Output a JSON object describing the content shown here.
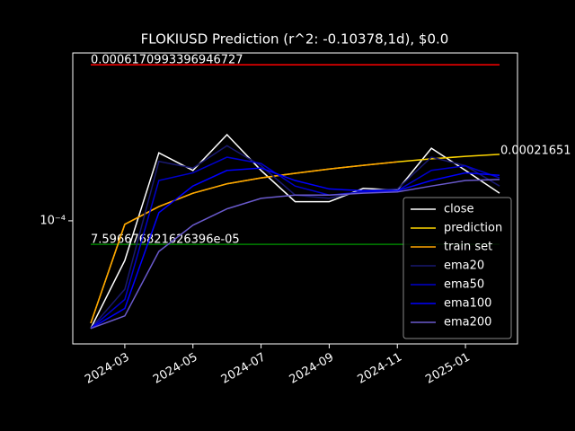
{
  "chart_data": {
    "type": "line",
    "title": "FLOKIUSD Prediction (r^2: -0.10378,1d), $0.0",
    "x": [
      "2024-02",
      "2024-03",
      "2024-04",
      "2024-05",
      "2024-06",
      "2024-07",
      "2024-08",
      "2024-09",
      "2024-10",
      "2024-11",
      "2024-12",
      "2025-01",
      "2025-02"
    ],
    "xlim": [
      "2024-02",
      "2025-02"
    ],
    "xticks": [
      "2024-03",
      "2024-05",
      "2024-07",
      "2024-09",
      "2024-11",
      "2025-01"
    ],
    "log_y": true,
    "ylim": [
      2.38e-05,
      0.000708
    ],
    "yticks": [
      {
        "value": 0.0001,
        "label": "10⁻⁴"
      }
    ],
    "legend": "lower right",
    "series": [
      {
        "name": "close",
        "color": "#ffffff",
        "values": [
          2.85e-05,
          6.3e-05,
          0.000221,
          0.00018,
          0.000273,
          0.00018,
          0.000125,
          0.000125,
          0.000146,
          0.000143,
          0.000233,
          0.00018,
          0.000138
        ]
      },
      {
        "name": "prediction",
        "color": "#ffd700",
        "values": [
          3.03e-05,
          9.6e-05,
          0.000118,
          0.000138,
          0.000154,
          0.000165,
          0.000174,
          0.000183,
          0.000191,
          0.000199,
          0.000206,
          0.000212,
          0.000217
        ]
      },
      {
        "name": "train set",
        "color": "#ffa500",
        "values": [
          3.03e-05,
          9.6e-05,
          0.000118,
          0.000138,
          0.000154,
          0.000165,
          0.000174,
          0.000183,
          0.000191,
          0.000199,
          null,
          null,
          null
        ]
      },
      {
        "name": "ema20",
        "color": "#191970",
        "values": [
          2.85e-05,
          4.5e-05,
          0.0002,
          0.000185,
          0.00024,
          0.00019,
          0.000135,
          0.00013,
          0.000142,
          0.000145,
          0.00021,
          0.00019,
          0.00015
        ]
      },
      {
        "name": "ema50",
        "color": "#0000cd",
        "values": [
          2.85e-05,
          4e-05,
          0.00016,
          0.000175,
          0.00021,
          0.000195,
          0.00015,
          0.000135,
          0.00014,
          0.000142,
          0.00018,
          0.00019,
          0.000165
        ]
      },
      {
        "name": "ema100",
        "color": "#0000ff",
        "values": [
          2.85e-05,
          3.6e-05,
          0.00011,
          0.00015,
          0.00018,
          0.000185,
          0.00016,
          0.000145,
          0.000142,
          0.000142,
          0.00016,
          0.000175,
          0.00017
        ]
      },
      {
        "name": "ema200",
        "color": "#6a5acd",
        "values": [
          2.85e-05,
          3.3e-05,
          7e-05,
          9.5e-05,
          0.000115,
          0.00013,
          0.000135,
          0.000135,
          0.000138,
          0.00014,
          0.00015,
          0.00016,
          0.000162
        ]
      }
    ],
    "hlines": [
      {
        "value": 0.0006170993396946727,
        "label": "0.0006170993396946727",
        "color": "#ff0000"
      },
      {
        "value": 7.596676821626396e-05,
        "label": "7.596676821626396e-05",
        "color": "#008000"
      }
    ],
    "last_value_label": 0.00021651
  }
}
